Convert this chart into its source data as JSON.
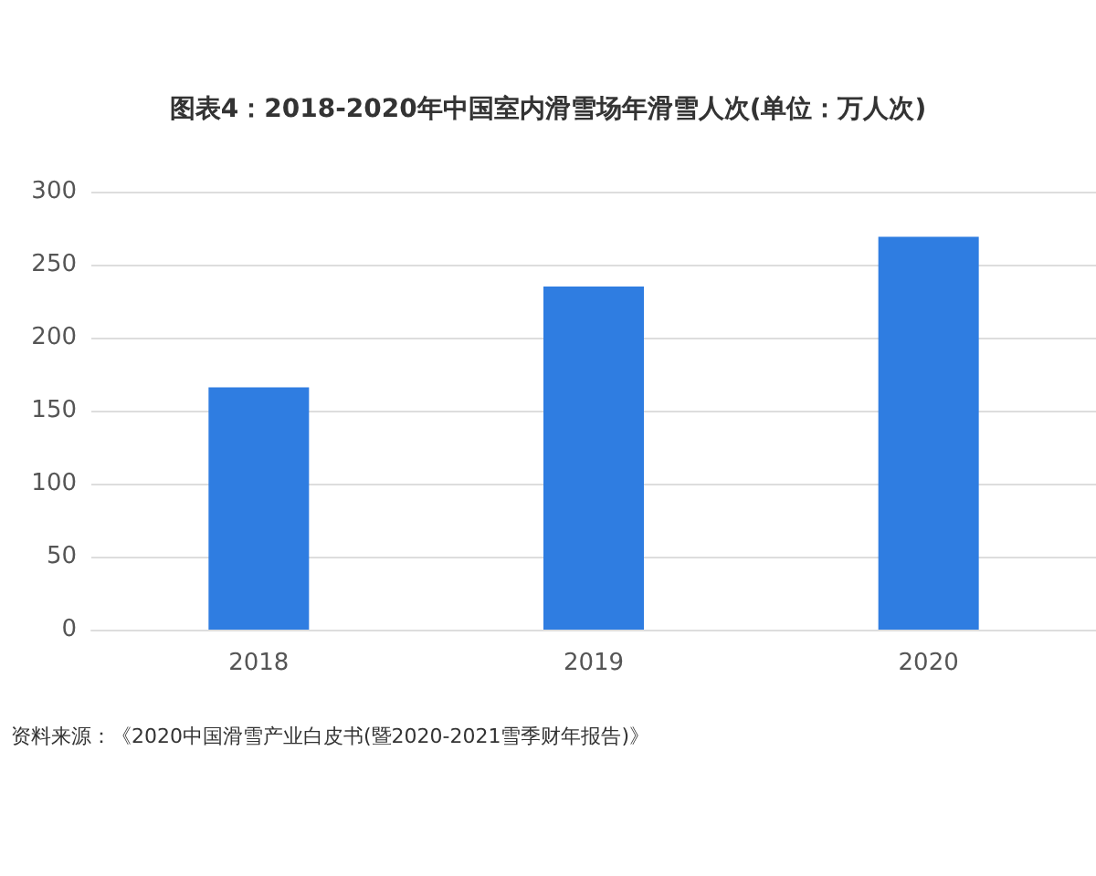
{
  "chart_data": {
    "type": "bar",
    "title": "图表4：2018-2020年中国室内滑雪场年滑雪人次(单位：万人次)",
    "categories": [
      "2018",
      "2019",
      "2020"
    ],
    "values": [
      166,
      235,
      269
    ],
    "color": "#2f7de1",
    "ylim": [
      0,
      300
    ],
    "yticks": [
      0,
      50,
      100,
      150,
      200,
      250,
      300
    ],
    "grid": "y",
    "annotations": [
      "资料来源：《2020中国滑雪产业白皮书(暨2020-2021雪季财年报告)》"
    ]
  }
}
